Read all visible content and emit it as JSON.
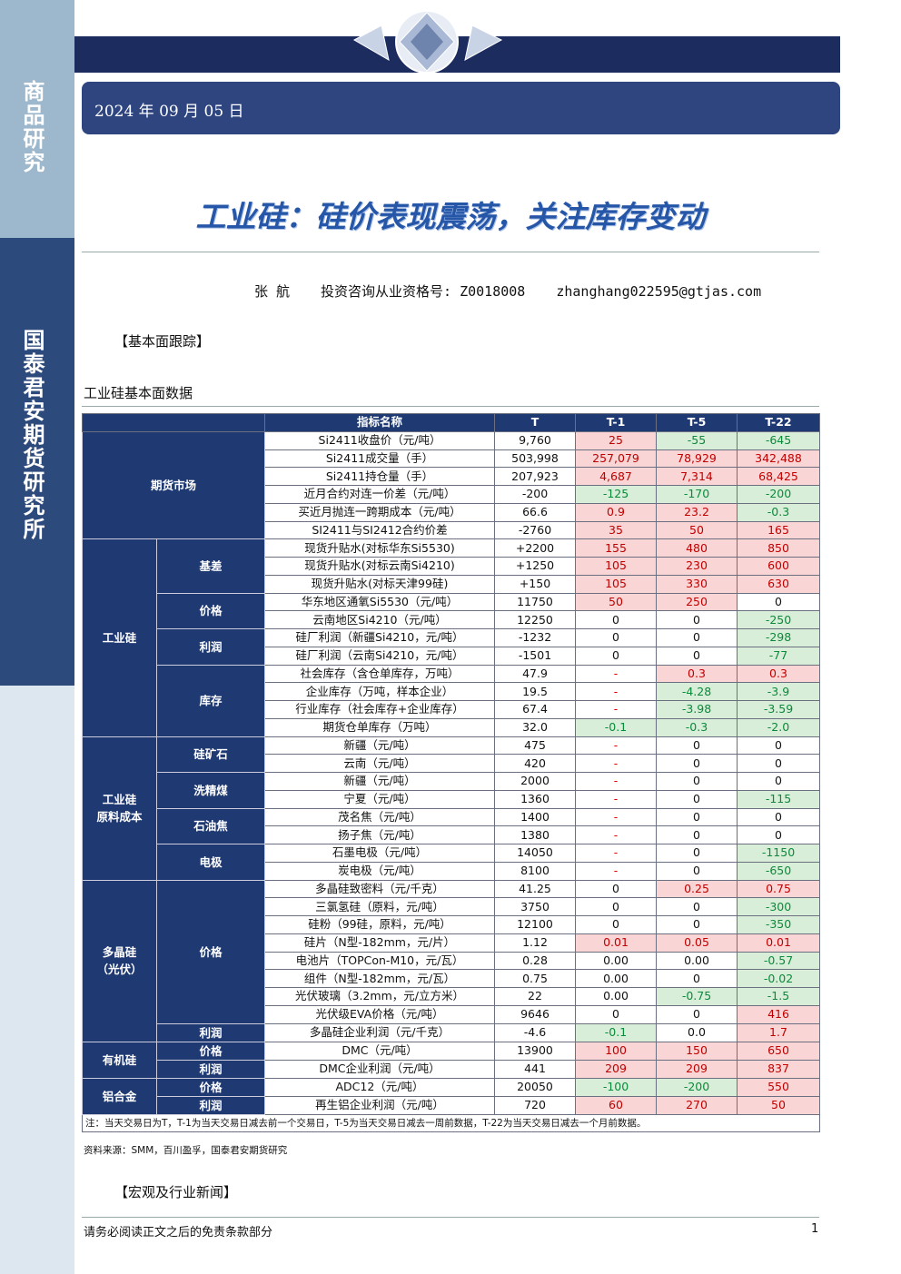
{
  "sidebar": {
    "label": "商品研究",
    "org": "国泰君安期货研究所"
  },
  "header": {
    "date": "2024 年 09 月 05 日",
    "title": "工业硅：硅价表现震荡，关注库存变动"
  },
  "author": {
    "name": "张  航",
    "license": "投资咨询从业资格号: Z0018008",
    "email": "zhanghang022595@gtjas.com"
  },
  "section1": "【基本面跟踪】",
  "table_title": "工业硅基本面数据",
  "table": {
    "header": [
      "指标名称",
      "T",
      "T-1",
      "T-5",
      "T-22"
    ],
    "groups": [
      {
        "label": "期货市场",
        "rows": [
          [
            "Si2411收盘价（元/吨）",
            "9,760",
            "25",
            "-55",
            "-645"
          ],
          [
            "Si2411成交量（手）",
            "503,998",
            "257,079",
            "78,929",
            "342,488"
          ],
          [
            "Si2411持仓量（手）",
            "207,923",
            "4,687",
            "7,314",
            "68,425"
          ],
          [
            "近月合约对连一价差（元/吨）",
            "-200",
            "-125",
            "-170",
            "-200"
          ],
          [
            "买近月抛连一跨期成本（元/吨）",
            "66.6",
            "0.9",
            "23.2",
            "-0.3"
          ],
          [
            "SI2411与SI2412合约价差",
            "-2760",
            "35",
            "50",
            "165"
          ]
        ]
      },
      {
        "label": "工业硅",
        "subgroups": [
          {
            "label": "基差",
            "rows": [
              [
                "现货升贴水(对标华东Si5530)",
                "+2200",
                "155",
                "480",
                "850"
              ],
              [
                "现货升贴水(对标云南Si4210)",
                "+1250",
                "105",
                "230",
                "600"
              ],
              [
                "现货升贴水(对标天津99硅)",
                "+150",
                "105",
                "330",
                "630"
              ]
            ]
          },
          {
            "label": "价格",
            "rows": [
              [
                "华东地区通氧Si5530（元/吨）",
                "11750",
                "50",
                "250",
                "0"
              ],
              [
                "云南地区Si4210（元/吨）",
                "12250",
                "0",
                "0",
                "-250"
              ]
            ]
          },
          {
            "label": "利润",
            "rows": [
              [
                "硅厂利润（新疆Si4210，元/吨）",
                "-1232",
                "0",
                "0",
                "-298"
              ],
              [
                "硅厂利润（云南Si4210，元/吨）",
                "-1501",
                "0",
                "0",
                "-77"
              ]
            ]
          },
          {
            "label": "库存",
            "rows": [
              [
                "社会库存（含仓单库存，万吨）",
                "47.9",
                "-",
                "0.3",
                "0.3"
              ],
              [
                "企业库存（万吨，样本企业）",
                "19.5",
                "-",
                "-4.28",
                "-3.9"
              ],
              [
                "行业库存（社会库存+企业库存）",
                "67.4",
                "-",
                "-3.98",
                "-3.59"
              ],
              [
                "期货仓单库存（万吨）",
                "32.0",
                "-0.1",
                "-0.3",
                "-2.0"
              ]
            ]
          }
        ]
      },
      {
        "label": "工业硅\n原料成本",
        "subgroups": [
          {
            "label": "硅矿石",
            "rows": [
              [
                "新疆（元/吨）",
                "475",
                "-",
                "0",
                "0"
              ],
              [
                "云南（元/吨）",
                "420",
                "-",
                "0",
                "0"
              ]
            ]
          },
          {
            "label": "洗精煤",
            "rows": [
              [
                "新疆（元/吨）",
                "2000",
                "-",
                "0",
                "0"
              ],
              [
                "宁夏（元/吨）",
                "1360",
                "-",
                "0",
                "-115"
              ]
            ]
          },
          {
            "label": "石油焦",
            "rows": [
              [
                "茂名焦（元/吨）",
                "1400",
                "-",
                "0",
                "0"
              ],
              [
                "扬子焦（元/吨）",
                "1380",
                "-",
                "0",
                "0"
              ]
            ]
          },
          {
            "label": "电极",
            "rows": [
              [
                "石墨电极（元/吨）",
                "14050",
                "-",
                "0",
                "-1150"
              ],
              [
                "炭电极（元/吨）",
                "8100",
                "-",
                "0",
                "-650"
              ]
            ]
          }
        ]
      },
      {
        "label": "多晶硅\n（光伏）",
        "subgroups": [
          {
            "label": "价格",
            "rows": [
              [
                "多晶硅致密料（元/千克）",
                "41.25",
                "0",
                "0.25",
                "0.75"
              ],
              [
                "三氯氢硅（原料，元/吨）",
                "3750",
                "0",
                "0",
                "-300"
              ],
              [
                "硅粉（99硅，原料，元/吨）",
                "12100",
                "0",
                "0",
                "-350"
              ],
              [
                "硅片（N型-182mm，元/片）",
                "1.12",
                "0.01",
                "0.05",
                "0.01"
              ],
              [
                "电池片（TOPCon-M10，元/瓦）",
                "0.28",
                "0.00",
                "0.00",
                "-0.57"
              ],
              [
                "组件（N型-182mm，元/瓦）",
                "0.75",
                "0.00",
                "0",
                "-0.02"
              ],
              [
                "光伏玻璃（3.2mm，元/立方米）",
                "22",
                "0.00",
                "-0.75",
                "-1.5"
              ],
              [
                "光伏级EVA价格（元/吨）",
                "9646",
                "0",
                "0",
                "416"
              ]
            ]
          },
          {
            "label": "利润",
            "rows": [
              [
                "多晶硅企业利润（元/千克）",
                "-4.6",
                "-0.1",
                "0.0",
                "1.7"
              ]
            ]
          }
        ]
      },
      {
        "label": "有机硅",
        "subgroups": [
          {
            "label": "价格",
            "rows": [
              [
                "DMC（元/吨）",
                "13900",
                "100",
                "150",
                "650"
              ]
            ]
          },
          {
            "label": "利润",
            "rows": [
              [
                "DMC企业利润（元/吨）",
                "441",
                "209",
                "209",
                "837"
              ]
            ]
          }
        ]
      },
      {
        "label": "铝合金",
        "subgroups": [
          {
            "label": "价格",
            "rows": [
              [
                "ADC12（元/吨）",
                "20050",
                "-100",
                "-200",
                "550"
              ]
            ]
          },
          {
            "label": "利润",
            "rows": [
              [
                "再生铝企业利润（元/吨）",
                "720",
                "60",
                "270",
                "50"
              ]
            ]
          }
        ]
      }
    ],
    "note": "注：当天交易日为T，T-1为当天交易日减去前一个交易日，T-5为当天交易日减去一周前数据，T-22为当天交易日减去一个月前数据。"
  },
  "source": "资料来源：SMM，百川盈孚，国泰君安期货研究",
  "section2": "【宏观及行业新闻】",
  "footer": {
    "disclaimer": "请务必阅读正文之后的免责条款部分",
    "page": "1"
  }
}
